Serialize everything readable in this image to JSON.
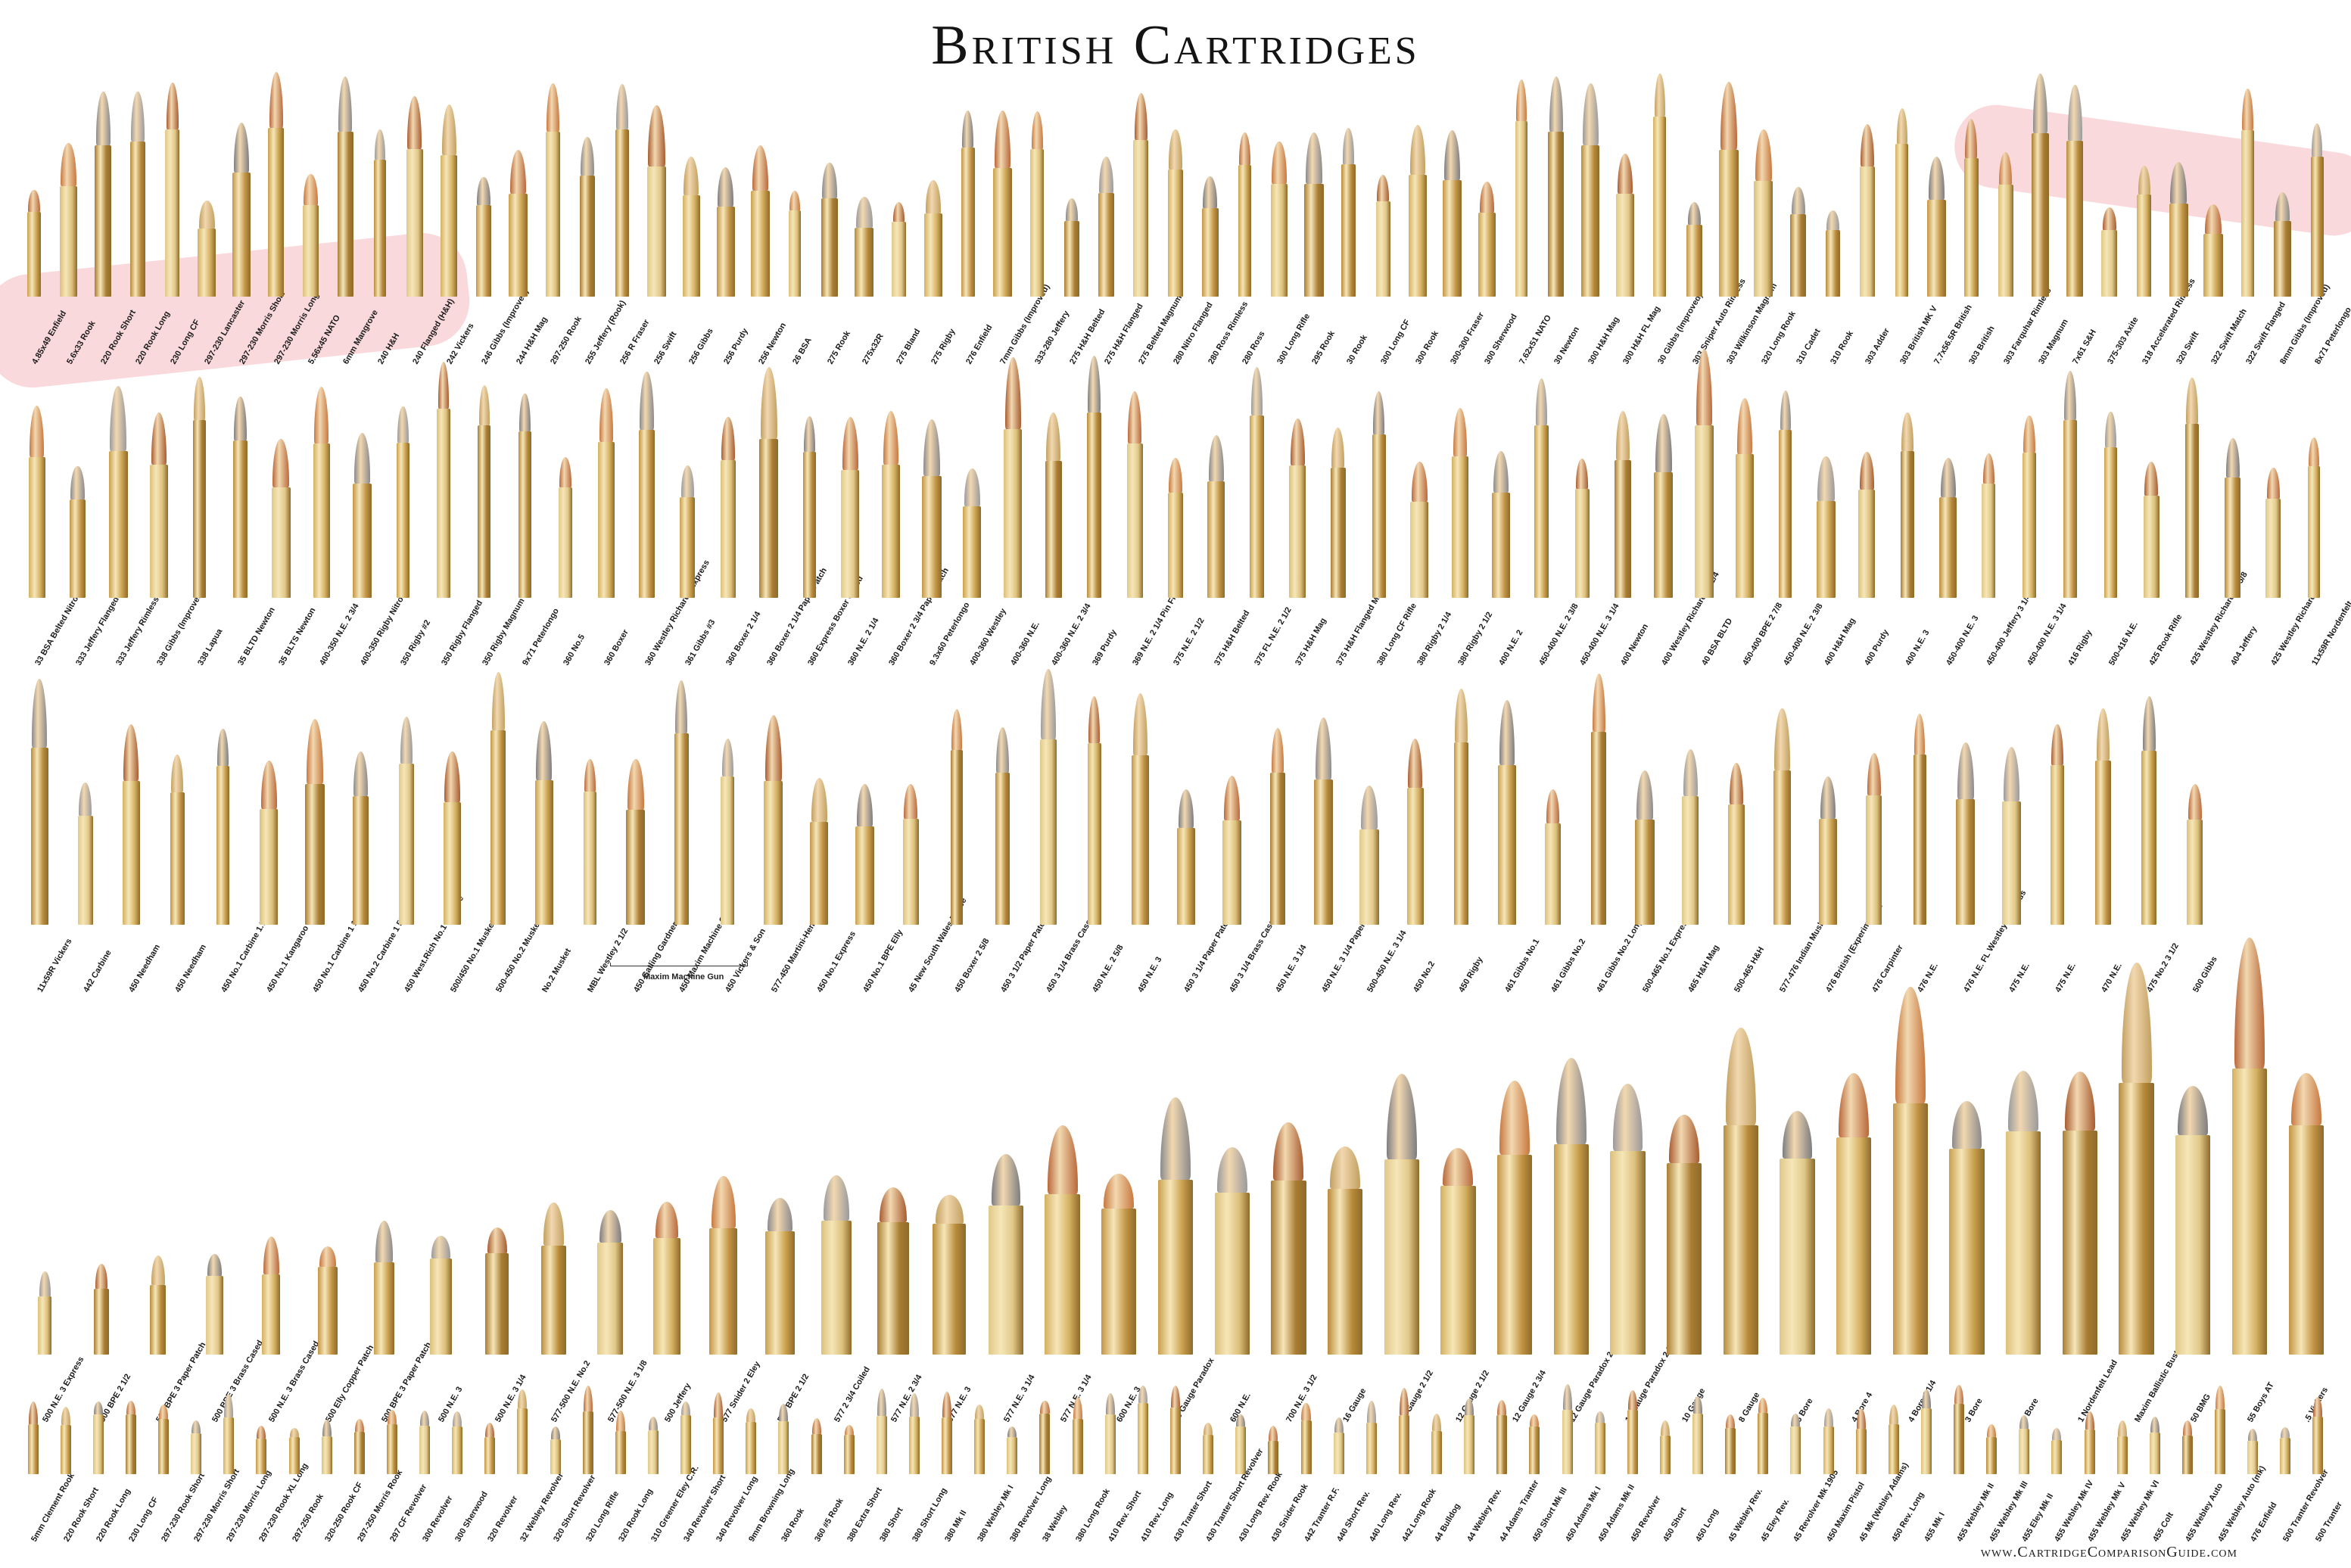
{
  "title": "British Cartridges",
  "website": "www.CartridgeComparisonGuide.com",
  "bracket_label": "Maxim Machine Gun",
  "rows": [
    [
      "4.85x49 Enfield",
      "5.6x33 Rook",
      "220 Rook Short",
      "220 Rook Long",
      "230 Long CF",
      "297-230 Lancaster",
      "297-230 Morris Short",
      "297-230 Morris Long",
      "5.56x45 NATO",
      "6mm Mangrove",
      "240 H&H",
      "240 Flanged (H&H)",
      "242 Vickers",
      "246 Gibbs (Improved)",
      "244 H&H Mag",
      "297-250 Rook",
      "255 Jeffery (Rook)",
      "256 R Fraser",
      "256 Swift",
      "256 Gibbs",
      "256 Purdy",
      "256 Newton",
      "26 BSA",
      "275 Rook",
      "275x32R",
      "275 Bland",
      "275 Rigby",
      "276 Enfield",
      "7mm Gibbs (Improved)",
      "333-280 Jeffery",
      "275 H&H Belted",
      "275 H&H Flanged",
      "275 Belted Magnum",
      "280 Nitro Flanged",
      "280 Ross Rimless",
      "280 Ross",
      "300 Long Rifle",
      "295 Rook",
      "30 Rook",
      "300 Long CF",
      "300 Rook",
      "300-300 Fraser",
      "300 Sherwood",
      "7.62x51 NATO",
      "30 Newton",
      "300 H&H Mag",
      "300 H&H FL Mag",
      "30 Gibbs (Improved)",
      "303 Sniper Auto Rimless",
      "303 Wilkinson Magnum",
      "320 Long Rook",
      "310 Cadet",
      "310 Rook",
      "303 Adder",
      "303 British MK V",
      "7.7x56.5R British",
      "303 British",
      "303 Farquhar Rimless",
      "303 Magnum",
      "7x61 S&H",
      "375-303 Axite",
      "318 Accelerated Rimless",
      "320 Swift",
      "322 Swift Match",
      "322 Swift Flanged",
      "8mm Gibbs (Improved)",
      "8x71 Peterlongo"
    ],
    [
      "33 BSA Belted Nitro",
      "333 Jeffery Flanged",
      "333 Jeffery Rimless",
      "338 Gibbs (Improved)",
      "338 Lapua",
      "35 BLTD Newton",
      "35 BLTS Newton",
      "400-350 N.E. 2 3/4",
      "400-350 Rigby Nitro",
      "350 Rigby #2",
      "350 Rigby Flanged",
      "350 Rigby Magnum",
      "9x71 Peterlongo",
      "360 No.5",
      "360 Boxer",
      "360 Westley Richards Express",
      "361 Gibbs #3",
      "360 Boxer 2 1/4",
      "360 Boxer 2 1/4 Paper Patch",
      "360 Express Boxer Cased",
      "360 N.E. 2 1/4",
      "360 Boxer 2 3/4 Paper Patch",
      "9.3x60 Peterlongo",
      "400-360 Westley",
      "400-360 N.E.",
      "400-360 N.E. 2 3/4",
      "369 Purdy",
      "369 N.E. 2 1/4 Pin Fire",
      "375 N.E. 2 1/2",
      "375 H&H Belted",
      "375 FL N.E. 2 1/2",
      "375 H&H Mag",
      "375 H&H Flanged Mag",
      "380 Long CF Rifle",
      "380 Rigby 2 1/4",
      "380 Rigby 2 1/2",
      "400 N.E. 2",
      "450-400 N.E. 2 3/8",
      "450-400 N.E. 3 1/4",
      "400 Newton",
      "400 Westley Richards 3 1/4",
      "40 BSA BLTD",
      "450-400 BPE 2 7/8",
      "450-400 N.E. 2 3/8",
      "400 H&H Mag",
      "400 Purdy",
      "400 N.E. 3",
      "450-400 N.E. 3",
      "450-400 Jeffery 3 1/4",
      "450-400 N.E. 3 1/4",
      "416 Rigby",
      "500-416 N.E.",
      "425 Rook Rifle",
      "425 Westley Richards 1 5/8",
      "404 Jeffery",
      "425 Westley Richards",
      "11x59R Nordenfelt"
    ],
    [
      "11x59R Vickers",
      "442 Carbine",
      "450 Needham",
      "450 Needham",
      "450 No.1 Carbine 1.7/16",
      "450 No.1 Kangaroo",
      "450 No.1 Carbine 1 1/2",
      "450 No.2 Carbine 1 5/16",
      "450 West.Rich No.1 Carbine",
      "500/450 No.1 Musket",
      "500-450 No.2 Musket",
      "No.2 Musket",
      "MBL Westley 2 1/2",
      "450 Gatling Gardner",
      "450 Maxim Machine Gun",
      "450 Vickers & Son",
      "577-450 Martini-Henry",
      "450 No.1 Express",
      "450 No.1 BPE Elly",
      "45 New South Wales Police",
      "450 Boxer 2 5/8",
      "450 3 1/2 Paper Patch",
      "450 3 1/4 Brass Cased",
      "450 N.E. 2 5/8",
      "450 N.E. 3",
      "450 3 1/4 Paper Patch",
      "450 3 1/4 Brass Cased",
      "450 N.E. 3 1/4",
      "450 N.E. 3 1/4 Paper Patch",
      "500-450 N.E. 3 1/4",
      "450 No.2",
      "450 Rigby",
      "461 Gibbs No.1",
      "461 Gibbs No.2",
      "461 Gibbs No.2 Long",
      "500-465 No.1 Express",
      "465 H&H Mag",
      "500-465 H&H",
      "577-476 Indian Musket",
      "476 British (Experimental)",
      "476 Carpinter",
      "476 N.E.",
      "476 N.E. FL Westley Richards",
      "475 N.E.",
      "475 N.E.",
      "470 N.E.",
      "475 No.2 3 1/2",
      "500 Gibbs"
    ],
    [
      "500 N.E. 3 Express",
      "500 BPE 2 1/2",
      "500 BPE 3 Paper Patch",
      "500 BPE 3 Brass Cased",
      "500 N.E. 3 Brass Cased",
      "500 Elly Copper Patch",
      "500 BPE 3 Paper Patch",
      "500 N.E. 3",
      "500 N.E. 3 1/4",
      "577-500 N.E. No.2",
      "577-500 N.E. 3 1/8",
      "500 Jeffery",
      "577 Snider 2 Eley",
      "577 BPE 2 1/2",
      "577 2 3/4 Coiled",
      "577 N.E. 2 3/4",
      "577 N.E. 3",
      "577 N.E. 3 1/4",
      "577 N.E. 3 1/4",
      "600 N.E. 3",
      "20 Gauge Paradox",
      "600 N.E.",
      "700 N.E. 3 1/2",
      "16 Gauge",
      "12 Gauge 2 1/2",
      "12 Gauge 2 1/2",
      "12 Gauge 2 3/4",
      "12 Gauge Paradox 2 1/2",
      "12 Gauge Paradox 2 3/4",
      "10 Gauge",
      "8 Gauge",
      "5 Bore",
      "4 Bore 4",
      "4 Bore 4 1/4",
      "3 Bore",
      "2 Bore",
      "1 Nordenfelt Lead",
      "Maxim Ballistic Buster",
      "50 BMG",
      "55 Boys AT",
      ".5 Vickers"
    ],
    [
      "5mm Clement Rook",
      "220 Rook Short",
      "220 Rook Long",
      "230 Long CF",
      "297-230 Rook Short",
      "297-230 Morris Short",
      "297-230 Morris Long",
      "297-230 Rook XL Long",
      "297-250 Rook",
      "320-250 Rook CF",
      "297-250 Morris Rook",
      "297 CF Revolver",
      "300 Revolver",
      "300 Sherwood",
      "320 Revolver",
      "32 Webley Revolver",
      "320 Short Revolver",
      "320 Long Rifle",
      "320 Rook Long",
      "310 Greener Eley C.R.",
      "340 Revolver Short",
      "340 Revolver Long",
      "9mm Browning Long",
      "360 Rook",
      "360 #5 Rook",
      "380 Extra Short",
      "380 Short",
      "380 Short Long",
      "380 Mk II",
      "380 Webley Mk I",
      "380 Revolver Long",
      "38 Webley",
      "380 Long Rook",
      "410 Rev. Short",
      "410 Rev. Long",
      "430 Tranter Short",
      "430 Tranter Short Revolver",
      "430 Long Rev. Rook",
      "430 Snider Rook",
      "442 Tranter R.F.",
      "440 Short Rev.",
      "440 Long Rev.",
      "442 Long Rook",
      "44 Bulldog",
      "44 Webley Rev.",
      "44 Adams Tranter",
      "450 Short Mk III",
      "450 Adams Mk I",
      "450 Adams Mk II",
      "450 Revolver",
      "450 Short",
      "450 Long",
      "45 Webley Rev.",
      "45 Eley Rev.",
      "45 Revolver Mk 1905",
      "450 Maxim Pistol",
      "45 Mk (Webley Adams)",
      "450 Rev. Long",
      "455 Mk I",
      "455 Webley Mk II",
      "455 Webley Mk III",
      "455 Eley Mk II",
      "455 Webley Mk IV",
      "455 Webley Mk V",
      "455 Webley Mk VI",
      "455 Colt",
      "455 Webley Auto",
      "455 Webley Auto (mk)",
      "476 Enfield",
      "500 Tranter Revolver",
      "500 Tranter"
    ]
  ],
  "colors": {
    "background": "#ffffff",
    "title": "#141414",
    "highlight_band": "#f0a0a8",
    "brass": "#c9a04c",
    "copper": "#b9683a",
    "lead": "#8a8a8c"
  }
}
